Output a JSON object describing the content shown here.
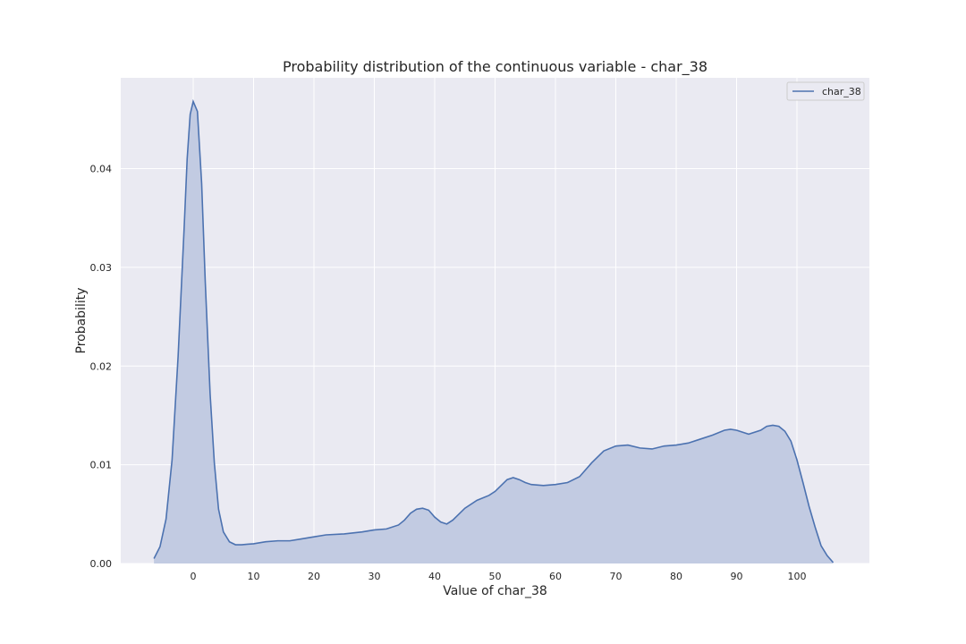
{
  "chart_data": {
    "type": "area",
    "title": "Probability distribution of the continuous variable - char_38",
    "xlabel": "Value of char_38",
    "ylabel": "Probability",
    "xlim": [
      -12,
      112
    ],
    "ylim": [
      0,
      0.0492
    ],
    "xticks": [
      0,
      10,
      20,
      30,
      40,
      50,
      60,
      70,
      80,
      90,
      100
    ],
    "yticks": [
      0.0,
      0.01,
      0.02,
      0.03,
      0.04
    ],
    "ytick_labels": [
      "0.00",
      "0.01",
      "0.02",
      "0.03",
      "0.04"
    ],
    "grid": true,
    "legend_position": "top-right",
    "series": [
      {
        "name": "char_38",
        "color": "#4c72b0",
        "fill_color": "#c2cbe2",
        "x": [
          -6.5,
          -5.5,
          -4.5,
          -3.5,
          -2.5,
          -1.5,
          -1,
          -0.5,
          0,
          0.7,
          1.4,
          2,
          2.8,
          3.5,
          4.2,
          5,
          6,
          7,
          8,
          9,
          10,
          12,
          14,
          16,
          18,
          20,
          22,
          25,
          28,
          30,
          32,
          34,
          35,
          36,
          37,
          38,
          39,
          40,
          41,
          42,
          43,
          45,
          47,
          49,
          50,
          51,
          52,
          53,
          54,
          55,
          56,
          58,
          60,
          62,
          64,
          66,
          68,
          70,
          72,
          74,
          76,
          78,
          80,
          82,
          84,
          86,
          88,
          89,
          90,
          92,
          94,
          95,
          96,
          97,
          98,
          99,
          100,
          101,
          102,
          103,
          104,
          105,
          106
        ],
        "y": [
          0.0005,
          0.0017,
          0.0045,
          0.0105,
          0.021,
          0.034,
          0.041,
          0.0455,
          0.0468,
          0.0458,
          0.0385,
          0.0285,
          0.0172,
          0.0102,
          0.0055,
          0.0032,
          0.0022,
          0.0019,
          0.0019,
          0.00195,
          0.002,
          0.0022,
          0.0023,
          0.0023,
          0.0025,
          0.0027,
          0.0029,
          0.003,
          0.0032,
          0.0034,
          0.0035,
          0.0039,
          0.0044,
          0.0051,
          0.0055,
          0.0056,
          0.0054,
          0.0047,
          0.0042,
          0.004,
          0.0044,
          0.0056,
          0.0064,
          0.0069,
          0.0073,
          0.0079,
          0.0085,
          0.0087,
          0.0085,
          0.0082,
          0.008,
          0.0079,
          0.008,
          0.0082,
          0.0088,
          0.0102,
          0.0114,
          0.0119,
          0.012,
          0.0117,
          0.0116,
          0.0119,
          0.012,
          0.0122,
          0.0126,
          0.013,
          0.0135,
          0.0136,
          0.0135,
          0.0131,
          0.0135,
          0.0139,
          0.014,
          0.0139,
          0.0134,
          0.0124,
          0.0105,
          0.0082,
          0.0058,
          0.0037,
          0.0018,
          0.0008,
          0.0001
        ]
      }
    ]
  }
}
